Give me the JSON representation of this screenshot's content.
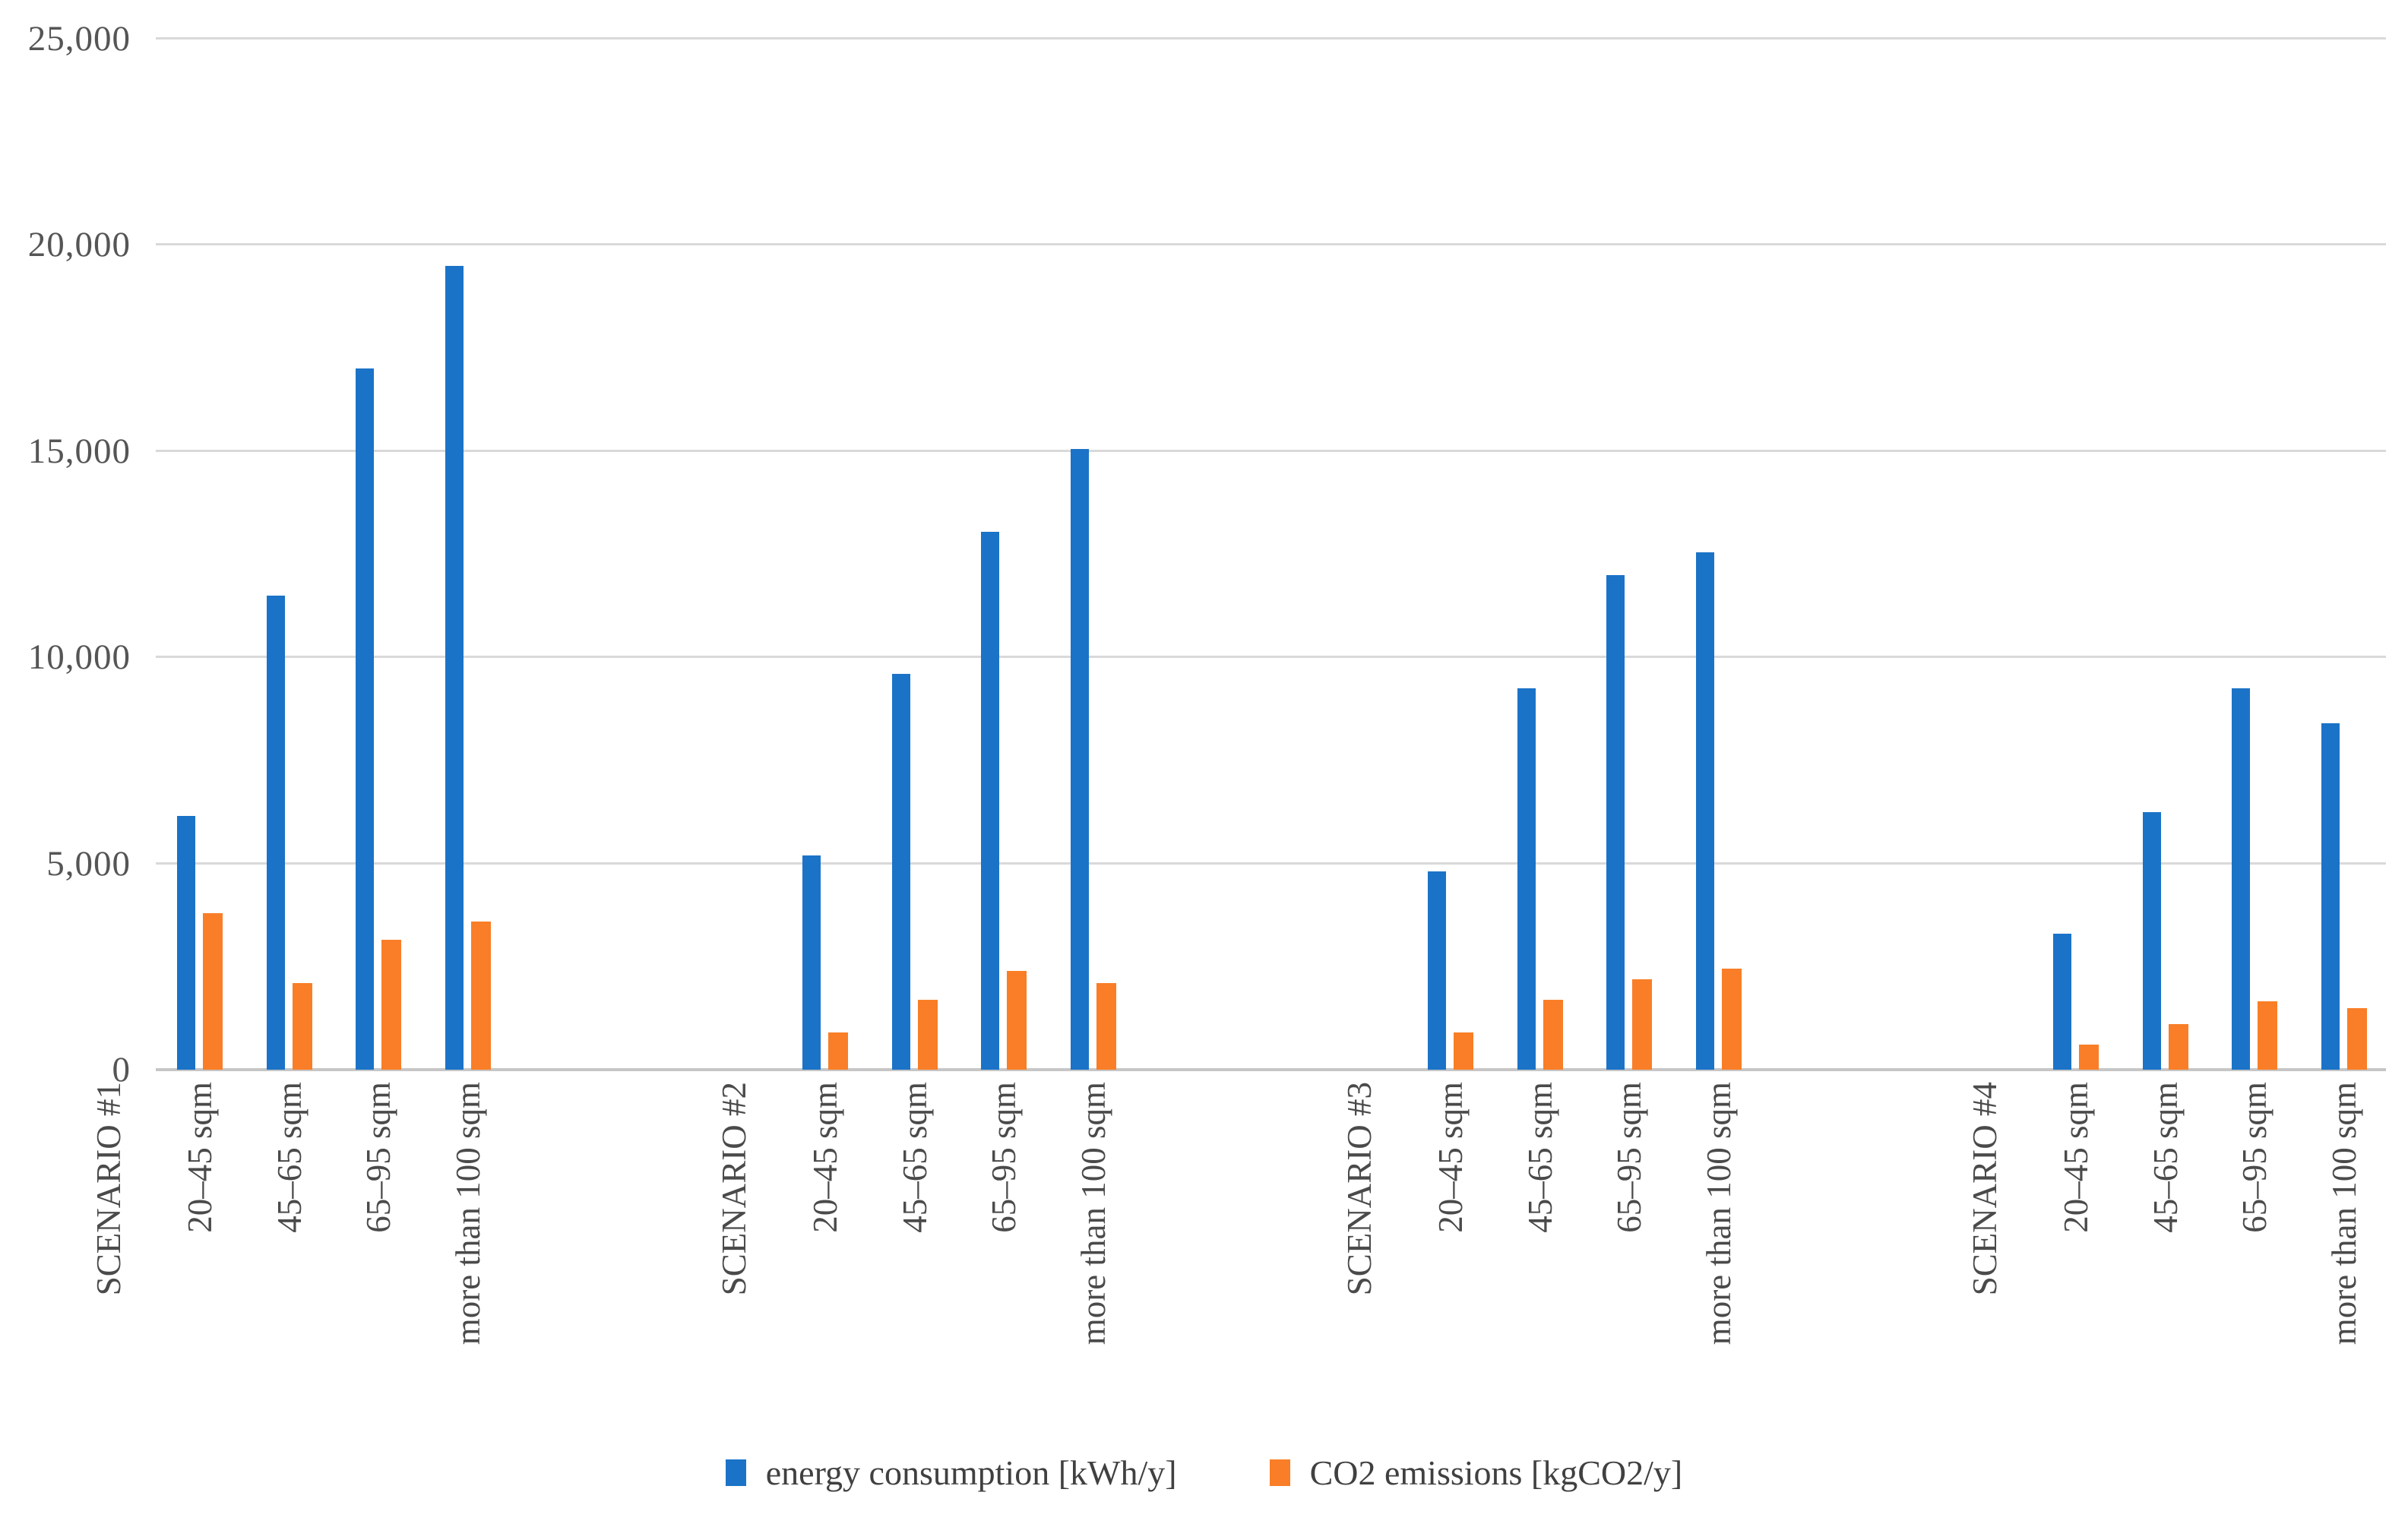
{
  "chart_data": {
    "type": "bar",
    "title": "",
    "xlabel": "",
    "ylabel": "",
    "ylim": [
      0,
      25000
    ],
    "grid": true,
    "legend_position": "bottom",
    "yticks": [
      {
        "value": 0,
        "label": "0"
      },
      {
        "value": 5000,
        "label": "5,000"
      },
      {
        "value": 10000,
        "label": "10,000"
      },
      {
        "value": 15000,
        "label": "15,000"
      },
      {
        "value": 20000,
        "label": "20,000"
      },
      {
        "value": 25000,
        "label": "25,000"
      }
    ],
    "series": [
      {
        "key": "energy",
        "name": "energy consumption [kWh/y]",
        "color": "#1b73c7"
      },
      {
        "key": "co2",
        "name": "CO2 emissions [kgCO2/y]",
        "color": "#f97e27"
      }
    ],
    "groups": [
      {
        "label": "SCENARIO #1",
        "categories": [
          "20–45 sqm",
          "45–65 sqm",
          "65–95 sqm",
          "more than 100 sqm"
        ],
        "energy": [
          6150,
          11500,
          17000,
          19500
        ],
        "co2": [
          3800,
          2100,
          3150,
          3600
        ]
      },
      {
        "label": "SCENARIO #2",
        "categories": [
          "20–45 sqm",
          "45–65 sqm",
          "65–95 sqm",
          "more than 100 sqm"
        ],
        "energy": [
          5200,
          9600,
          13050,
          15050
        ],
        "co2": [
          900,
          1700,
          2400,
          2100
        ]
      },
      {
        "label": "SCENARIO #3",
        "categories": [
          "20–45 sqm",
          "45–65 sqm",
          "65–95 sqm",
          "more than 100 sqm"
        ],
        "energy": [
          4800,
          9250,
          12000,
          12550
        ],
        "co2": [
          900,
          1700,
          2200,
          2450
        ]
      },
      {
        "label": "SCENARIO #4",
        "categories": [
          "20–45 sqm",
          "45–65 sqm",
          "65–95 sqm",
          "more than 100 sqm"
        ],
        "energy": [
          3300,
          6250,
          9250,
          8400
        ],
        "co2": [
          600,
          1100,
          1650,
          1500
        ]
      }
    ]
  }
}
